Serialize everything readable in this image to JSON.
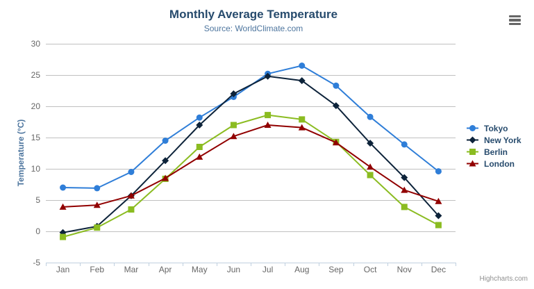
{
  "header": {
    "title": "Monthly Average Temperature",
    "subtitle": "Source: WorldClimate.com"
  },
  "chart_data": {
    "type": "line",
    "title": "Monthly Average Temperature",
    "subtitle": "Source: WorldClimate.com",
    "categories": [
      "Jan",
      "Feb",
      "Mar",
      "Apr",
      "May",
      "Jun",
      "Jul",
      "Aug",
      "Sep",
      "Oct",
      "Nov",
      "Dec"
    ],
    "series": [
      {
        "name": "Tokyo",
        "color": "#2f7ed8",
        "marker": "circle",
        "values": [
          7.0,
          6.9,
          9.5,
          14.5,
          18.2,
          21.5,
          25.2,
          26.5,
          23.3,
          18.3,
          13.9,
          9.6
        ]
      },
      {
        "name": "New York",
        "color": "#0d233a",
        "marker": "diamond",
        "values": [
          -0.2,
          0.8,
          5.7,
          11.3,
          17.0,
          22.0,
          24.8,
          24.1,
          20.1,
          14.1,
          8.6,
          2.5
        ]
      },
      {
        "name": "Berlin",
        "color": "#8bbc21",
        "marker": "square",
        "values": [
          -0.9,
          0.6,
          3.5,
          8.4,
          13.5,
          17.0,
          18.6,
          17.9,
          14.3,
          9.0,
          3.9,
          1.0
        ]
      },
      {
        "name": "London",
        "color": "#910000",
        "marker": "triangle",
        "values": [
          3.9,
          4.2,
          5.7,
          8.5,
          11.9,
          15.2,
          17.0,
          16.6,
          14.2,
          10.3,
          6.6,
          4.8
        ]
      }
    ],
    "xlabel": "",
    "ylabel": "Temperature (°C)",
    "ylim": [
      -5,
      30
    ],
    "yticks": [
      -5,
      0,
      5,
      10,
      15,
      20,
      25,
      30
    ],
    "grid": true,
    "legend_position": "right"
  },
  "colors": {
    "title_text": "#274b6d",
    "subtitle_text": "#4d759e",
    "axis_title_text": "#4d759e",
    "tick_text": "#666666",
    "grid_line": "#c0c0c0",
    "axis_line": "#c0d0e0",
    "legend_text": "#274b6d",
    "menu_icon": "#666666",
    "credits_text": "#909090"
  },
  "credits": {
    "label": "Highcharts.com"
  }
}
